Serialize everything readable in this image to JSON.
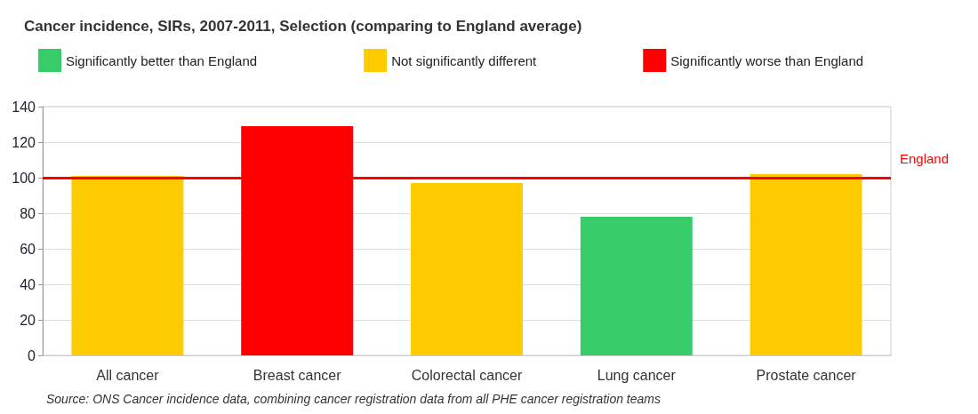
{
  "chart_data": {
    "type": "bar",
    "title": "Cancer incidence, SIRs, 2007-2011, Selection (comparing to England average)",
    "categories": [
      "All cancer",
      "Breast cancer",
      "Colorectal cancer",
      "Lung cancer",
      "Prostate cancer"
    ],
    "series": [
      {
        "name": "Significantly better than England",
        "color": "#37cb69",
        "values": [
          null,
          null,
          null,
          78,
          null
        ]
      },
      {
        "name": "Not significantly different",
        "color": "#fecb00",
        "values": [
          101,
          null,
          97,
          null,
          102
        ]
      },
      {
        "name": "Significantly worse than England",
        "color": "#ff0000",
        "values": [
          null,
          129,
          null,
          null,
          null
        ]
      }
    ],
    "stacked": true,
    "ylim": [
      0,
      140
    ],
    "yticks": [
      0,
      20,
      40,
      60,
      80,
      100,
      120,
      140
    ],
    "grid": "y",
    "legend": "top",
    "ref_lines": [
      {
        "axis": "y",
        "value": 100,
        "label": "England",
        "color": "#ff0000"
      }
    ],
    "annotations": [
      "Source: ONS Cancer incidence data, combining cancer registration data from all PHE cancer registration teams"
    ]
  }
}
